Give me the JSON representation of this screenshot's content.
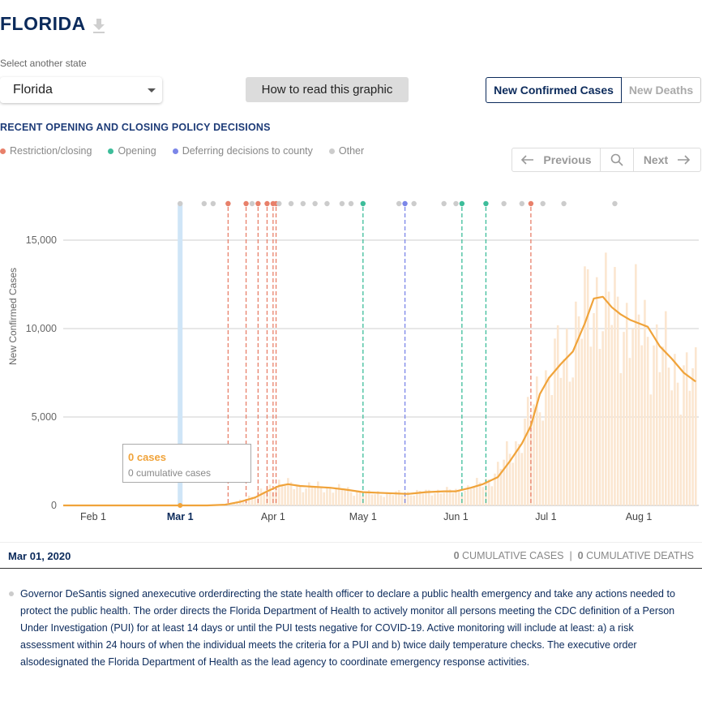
{
  "header": {
    "state_title": "FLORIDA",
    "select_label": "Select another state",
    "selected_state": "Florida",
    "how_to_read": "How to read this graphic"
  },
  "metric_toggle": {
    "cases_label": "New Confirmed Cases",
    "deaths_label": "New Deaths",
    "active": "cases"
  },
  "policy": {
    "heading": "RECENT OPENING AND CLOSING POLICY DECISIONS",
    "legend": [
      {
        "label": "Restriction/closing",
        "color": "#e8806a"
      },
      {
        "label": "Opening",
        "color": "#3dbd9a"
      },
      {
        "label": "Deferring decisions to county",
        "color": "#7b86e8"
      },
      {
        "label": "Other",
        "color": "#cccccc"
      }
    ]
  },
  "navigation": {
    "previous_label": "Previous",
    "next_label": "Next",
    "search_icon": "search-icon"
  },
  "tooltip": {
    "cases": "0 cases",
    "cumulative": "0 cumulative cases"
  },
  "date_bar": {
    "selected_date": "Mar 01, 2020",
    "cumulative_cases_value": "0",
    "cumulative_cases_label": "CUMULATIVE CASES",
    "separator": "|",
    "cumulative_deaths_value": "0",
    "cumulative_deaths_label": "CUMULATIVE DEATHS"
  },
  "description": "Governor DeSantis signed anexecutive orderdirecting the state health officer to declare a public health emergency and take any actions needed to protect the public health. The order directs the Florida Department of Health to actively monitor all persons meeting the CDC definition of a Person Under Investigation (PUI) for at least 14 days or until the PUI tests negative for COVID-19. Active monitoring will include at least: a) a risk assessment within 24 hours of when the individual meets the criteria for a PUI and b) twice daily temperature checks. The executive order alsodesignated the Florida Department of Health as the lead agency to coordinate emergency response activities.",
  "chart_data": {
    "type": "bar",
    "ylabel": "New Confirmed Cases",
    "ylim": [
      0,
      17000
    ],
    "xlim": [
      "2020-01-22",
      "2020-08-21"
    ],
    "yticks": [
      {
        "value": 0,
        "label": "0"
      },
      {
        "value": 5000,
        "label": "5,000"
      },
      {
        "value": 10000,
        "label": "10,000"
      },
      {
        "value": 15000,
        "label": "15,000"
      }
    ],
    "xticks": [
      {
        "date": "2020-02-01",
        "label": "Feb 1"
      },
      {
        "date": "2020-03-01",
        "label": "Mar 1"
      },
      {
        "date": "2020-04-01",
        "label": "Apr 1"
      },
      {
        "date": "2020-05-01",
        "label": "May 1"
      },
      {
        "date": "2020-06-01",
        "label": "Jun 1"
      },
      {
        "date": "2020-07-01",
        "label": "Jul 1"
      },
      {
        "date": "2020-08-01",
        "label": "Aug 1"
      }
    ],
    "selected_date": "2020-03-01",
    "grid": true,
    "colors": {
      "bars": "#fbe6d0",
      "line": "#f0a33a",
      "highlight": "#cfe5f7"
    },
    "daily": [
      {
        "date": "2020-03-10",
        "value": 10
      },
      {
        "date": "2020-03-15",
        "value": 40
      },
      {
        "date": "2020-03-18",
        "value": 100
      },
      {
        "date": "2020-03-20",
        "value": 200
      },
      {
        "date": "2020-03-22",
        "value": 350
      },
      {
        "date": "2020-03-24",
        "value": 500
      },
      {
        "date": "2020-03-26",
        "value": 600
      },
      {
        "date": "2020-03-28",
        "value": 800
      },
      {
        "date": "2020-03-30",
        "value": 1000
      },
      {
        "date": "2020-04-01",
        "value": 1100
      },
      {
        "date": "2020-04-03",
        "value": 1250
      },
      {
        "date": "2020-04-05",
        "value": 1200
      },
      {
        "date": "2020-04-08",
        "value": 1150
      },
      {
        "date": "2020-04-12",
        "value": 1050
      },
      {
        "date": "2020-04-16",
        "value": 1050
      },
      {
        "date": "2020-04-20",
        "value": 1000
      },
      {
        "date": "2020-04-24",
        "value": 900
      },
      {
        "date": "2020-04-28",
        "value": 800
      },
      {
        "date": "2020-05-02",
        "value": 650
      },
      {
        "date": "2020-05-06",
        "value": 700
      },
      {
        "date": "2020-05-10",
        "value": 650
      },
      {
        "date": "2020-05-14",
        "value": 700
      },
      {
        "date": "2020-05-18",
        "value": 700
      },
      {
        "date": "2020-05-22",
        "value": 750
      },
      {
        "date": "2020-05-26",
        "value": 800
      },
      {
        "date": "2020-05-30",
        "value": 800
      },
      {
        "date": "2020-06-03",
        "value": 850
      },
      {
        "date": "2020-06-07",
        "value": 1100
      },
      {
        "date": "2020-06-10",
        "value": 1300
      },
      {
        "date": "2020-06-13",
        "value": 1600
      },
      {
        "date": "2020-06-16",
        "value": 2200
      },
      {
        "date": "2020-06-19",
        "value": 3100
      },
      {
        "date": "2020-06-22",
        "value": 3600
      },
      {
        "date": "2020-06-25",
        "value": 4800
      },
      {
        "date": "2020-06-28",
        "value": 6000
      },
      {
        "date": "2020-07-01",
        "value": 7000
      },
      {
        "date": "2020-07-04",
        "value": 7800
      },
      {
        "date": "2020-07-07",
        "value": 8500
      },
      {
        "date": "2020-07-10",
        "value": 9500
      },
      {
        "date": "2020-07-13",
        "value": 10500
      },
      {
        "date": "2020-07-16",
        "value": 11500
      },
      {
        "date": "2020-07-18",
        "value": 11900
      },
      {
        "date": "2020-07-21",
        "value": 11300
      },
      {
        "date": "2020-07-24",
        "value": 11000
      },
      {
        "date": "2020-07-27",
        "value": 10600
      },
      {
        "date": "2020-07-30",
        "value": 10300
      },
      {
        "date": "2020-08-02",
        "value": 10200
      },
      {
        "date": "2020-08-05",
        "value": 9500
      },
      {
        "date": "2020-08-08",
        "value": 8700
      },
      {
        "date": "2020-08-11",
        "value": 8000
      },
      {
        "date": "2020-08-14",
        "value": 7600
      },
      {
        "date": "2020-08-17",
        "value": 7200
      },
      {
        "date": "2020-08-20",
        "value": 7000
      }
    ],
    "trend": [
      {
        "date": "2020-01-22",
        "value": 0
      },
      {
        "date": "2020-03-01",
        "value": 0
      },
      {
        "date": "2020-03-10",
        "value": 0
      },
      {
        "date": "2020-03-16",
        "value": 40
      },
      {
        "date": "2020-03-21",
        "value": 200
      },
      {
        "date": "2020-03-26",
        "value": 450
      },
      {
        "date": "2020-03-30",
        "value": 800
      },
      {
        "date": "2020-04-03",
        "value": 1100
      },
      {
        "date": "2020-04-06",
        "value": 1200
      },
      {
        "date": "2020-04-10",
        "value": 1100
      },
      {
        "date": "2020-04-15",
        "value": 1050
      },
      {
        "date": "2020-04-20",
        "value": 1000
      },
      {
        "date": "2020-04-25",
        "value": 900
      },
      {
        "date": "2020-05-01",
        "value": 750
      },
      {
        "date": "2020-05-08",
        "value": 700
      },
      {
        "date": "2020-05-16",
        "value": 650
      },
      {
        "date": "2020-05-22",
        "value": 750
      },
      {
        "date": "2020-05-28",
        "value": 800
      },
      {
        "date": "2020-06-01",
        "value": 800
      },
      {
        "date": "2020-06-06",
        "value": 1000
      },
      {
        "date": "2020-06-10",
        "value": 1200
      },
      {
        "date": "2020-06-15",
        "value": 1600
      },
      {
        "date": "2020-06-19",
        "value": 2500
      },
      {
        "date": "2020-06-23",
        "value": 3500
      },
      {
        "date": "2020-06-26",
        "value": 4500
      },
      {
        "date": "2020-06-29",
        "value": 6300
      },
      {
        "date": "2020-07-02",
        "value": 7200
      },
      {
        "date": "2020-07-06",
        "value": 8000
      },
      {
        "date": "2020-07-10",
        "value": 8700
      },
      {
        "date": "2020-07-14",
        "value": 10300
      },
      {
        "date": "2020-07-17",
        "value": 11700
      },
      {
        "date": "2020-07-20",
        "value": 11800
      },
      {
        "date": "2020-07-23",
        "value": 11200
      },
      {
        "date": "2020-07-26",
        "value": 10800
      },
      {
        "date": "2020-07-29",
        "value": 10500
      },
      {
        "date": "2020-08-01",
        "value": 10300
      },
      {
        "date": "2020-08-04",
        "value": 10100
      },
      {
        "date": "2020-08-08",
        "value": 9000
      },
      {
        "date": "2020-08-12",
        "value": 8300
      },
      {
        "date": "2020-08-16",
        "value": 7500
      },
      {
        "date": "2020-08-20",
        "value": 7000
      }
    ],
    "events": [
      {
        "date": "2020-03-01",
        "kind": "other",
        "line": false
      },
      {
        "date": "2020-03-09",
        "kind": "other",
        "line": false
      },
      {
        "date": "2020-03-12",
        "kind": "other",
        "line": false
      },
      {
        "date": "2020-03-17",
        "kind": "other",
        "line": false
      },
      {
        "date": "2020-03-17",
        "kind": "restriction",
        "line": true
      },
      {
        "date": "2020-03-23",
        "kind": "restriction",
        "line": true
      },
      {
        "date": "2020-03-25",
        "kind": "other",
        "line": false
      },
      {
        "date": "2020-03-27",
        "kind": "restriction",
        "line": true
      },
      {
        "date": "2020-03-30",
        "kind": "restriction",
        "line": true
      },
      {
        "date": "2020-04-01",
        "kind": "restriction",
        "line": true
      },
      {
        "date": "2020-04-02",
        "kind": "restriction",
        "line": true
      },
      {
        "date": "2020-04-03",
        "kind": "other",
        "line": false
      },
      {
        "date": "2020-04-07",
        "kind": "other",
        "line": false
      },
      {
        "date": "2020-04-11",
        "kind": "other",
        "line": false
      },
      {
        "date": "2020-04-15",
        "kind": "other",
        "line": false
      },
      {
        "date": "2020-04-19",
        "kind": "other",
        "line": false
      },
      {
        "date": "2020-04-24",
        "kind": "other",
        "line": false
      },
      {
        "date": "2020-04-27",
        "kind": "other",
        "line": false
      },
      {
        "date": "2020-05-01",
        "kind": "opening",
        "line": true
      },
      {
        "date": "2020-05-13",
        "kind": "other",
        "line": false
      },
      {
        "date": "2020-05-15",
        "kind": "deferring",
        "line": true
      },
      {
        "date": "2020-05-18",
        "kind": "other",
        "line": false
      },
      {
        "date": "2020-05-28",
        "kind": "other",
        "line": false
      },
      {
        "date": "2020-06-01",
        "kind": "other",
        "line": false
      },
      {
        "date": "2020-06-03",
        "kind": "opening",
        "line": true
      },
      {
        "date": "2020-06-11",
        "kind": "opening",
        "line": true
      },
      {
        "date": "2020-06-17",
        "kind": "other",
        "line": false
      },
      {
        "date": "2020-06-23",
        "kind": "other",
        "line": false
      },
      {
        "date": "2020-06-26",
        "kind": "restriction",
        "line": true
      },
      {
        "date": "2020-06-30",
        "kind": "other",
        "line": false
      },
      {
        "date": "2020-07-07",
        "kind": "other",
        "line": false
      },
      {
        "date": "2020-07-24",
        "kind": "other",
        "line": false
      }
    ]
  }
}
